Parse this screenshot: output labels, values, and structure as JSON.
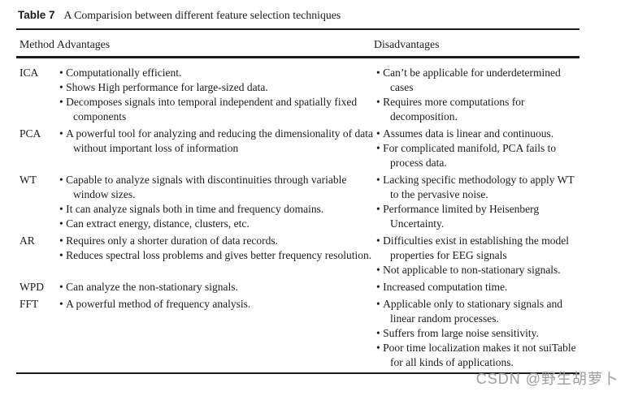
{
  "caption": {
    "label": "Table 7",
    "text": "A Comparision between different feature selection techniques"
  },
  "table": {
    "columns": [
      "Method",
      "Advantages",
      "Disadvantages"
    ],
    "rows": [
      {
        "method": "ICA",
        "advantages": [
          "Computationally efficient.",
          "Shows High performance for large-sized data.",
          "Decomposes signals into temporal independent and spatially fixed components"
        ],
        "disadvantages": [
          "Can’t be applicable for underdetermined cases",
          "Requires more computations for decomposition."
        ]
      },
      {
        "method": "PCA",
        "advantages": [
          "A powerful tool for analyzing and reducing the dimensionality of data without important loss of information"
        ],
        "disadvantages": [
          "Assumes data is linear and continuous.",
          "For complicated manifold, PCA fails to process data."
        ]
      },
      {
        "method": "WT",
        "advantages": [
          "Capable to analyze signals with discontinuities through variable window sizes.",
          "It can analyze signals both in time and frequency domains.",
          "Can extract energy, distance, clusters, etc."
        ],
        "disadvantages": [
          "Lacking specific methodology to apply WT to the pervasive noise.",
          "Performance limited by Heisenberg Uncertainty."
        ]
      },
      {
        "method": "AR",
        "advantages": [
          "Requires only a shorter duration of data records.",
          "Reduces spectral loss problems and gives better frequency resolution."
        ],
        "disadvantages": [
          "Difficulties exist in establishing the model properties for EEG signals",
          "Not applicable to non-stationary sig­nals."
        ]
      },
      {
        "method": "WPD",
        "advantages": [
          "Can analyze the non-stationary signals."
        ],
        "disadvantages": [
          "Increased computation time."
        ]
      },
      {
        "method": "FFT",
        "advantages": [
          "A powerful method of frequency analysis."
        ],
        "disadvantages": [
          "Applicable only to stationary signals and linear random processes.",
          "Suffers from large noise sensitivity.",
          "Poor time localization makes it not suiTable for all kinds of applications."
        ]
      }
    ]
  },
  "watermark": {
    "text": "CSDN @野生胡萝卜"
  },
  "colors": {
    "text": "#1b1b1b",
    "rule": "#1b1b1b",
    "watermark": "#9e9e9e",
    "background": "#ffffff"
  }
}
